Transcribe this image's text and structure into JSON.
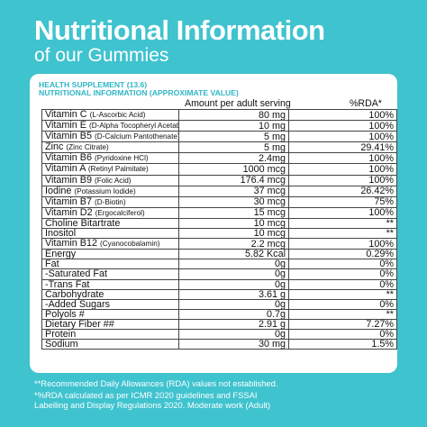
{
  "header": {
    "title": "Nutritional Information",
    "subtitle": "of our Gummies"
  },
  "card": {
    "heading1": "HEALTH SUPPLEMENT (13.6)",
    "heading2": "NUTRITIONAL INFORMATION (APPROXIMATE VALUE)",
    "col_amount": "Amount per adult serving",
    "col_rda": "%RDA*"
  },
  "rows": [
    {
      "name": "Vitamin C",
      "sub": "(L-Ascorbic Acid)",
      "amount": "80 mg",
      "rda": "100%"
    },
    {
      "name": "Vitamin E",
      "sub": "(D-Alpha Tocopheryl Acetate)",
      "amount": "10 mg",
      "rda": "100%"
    },
    {
      "name": "Vitamin B5",
      "sub": "(D-Calcium Pantothenate)",
      "amount": "5 mg",
      "rda": "100%"
    },
    {
      "name": "Zinc",
      "sub": "(Zinc Citrate)",
      "amount": "5 mg",
      "rda": "29.41%"
    },
    {
      "name": "Vitamin B6",
      "sub": "(Pyridoxine HCl)",
      "amount": "2.4mg",
      "rda": "100%"
    },
    {
      "name": "Vitamin A",
      "sub": "(Retinyl Palmitate)",
      "amount": "1000 mcg",
      "rda": "100%"
    },
    {
      "name": "Vitamin B9",
      "sub": "(Folic Acid)",
      "amount": "176.4 mcg",
      "rda": "100%"
    },
    {
      "name": "Iodine",
      "sub": "(Potassium Iodide)",
      "amount": "37 mcg",
      "rda": "26.42%"
    },
    {
      "name": "Vitamin B7",
      "sub": "(D-Biotin)",
      "amount": "30 mcg",
      "rda": "75%"
    },
    {
      "name": "Vitamin D2",
      "sub": "(Ergocalciferol)",
      "amount": "15 mcg",
      "rda": "100%"
    },
    {
      "name": "Choline Bitartrate",
      "sub": "",
      "amount": "10 mcg",
      "rda": "**"
    },
    {
      "name": "Inositol",
      "sub": "",
      "amount": "10 mcg",
      "rda": "**"
    },
    {
      "name": "Vitamin B12",
      "sub": "(Cyanocobalamin)",
      "amount": "2.2 mcg",
      "rda": "100%"
    },
    {
      "name": "Energy",
      "sub": "",
      "amount": "5.82 Kcal",
      "rda": "0.29%"
    },
    {
      "name": "Fat",
      "sub": "",
      "amount": "0g",
      "rda": "0%"
    },
    {
      "name": "-Saturated Fat",
      "sub": "",
      "amount": "0g",
      "rda": "0%"
    },
    {
      "name": "-Trans Fat",
      "sub": "",
      "amount": "0g",
      "rda": "0%"
    },
    {
      "name": "Carbohydrate",
      "sub": "",
      "amount": "3.61 g",
      "rda": "**"
    },
    {
      "name": "-Added Sugars",
      "sub": "",
      "amount": "0g",
      "rda": "0%"
    },
    {
      "name": "Polyols #",
      "sub": "",
      "amount": "0.7g",
      "rda": "**"
    },
    {
      "name": "Dietary Fiber ##",
      "sub": "",
      "amount": "2.91 g",
      "rda": "7.27%"
    },
    {
      "name": "Protein",
      "sub": "",
      "amount": "0g",
      "rda": "0%"
    },
    {
      "name": "Sodium",
      "sub": "",
      "amount": "30 mg",
      "rda": "1.5%"
    }
  ],
  "footnotes": {
    "note1": "**Recommended Daily Allowances (RDA) values not established.",
    "note2": "*%RDA calculated as per ICMR 2020 guidelines and FSSAI",
    "note3": "Labelling and Display Regulations 2020. Moderate work (Adult)"
  },
  "colors": {
    "background": "#3fc3cf",
    "heading_accent": "#2fb6c6",
    "card": "#ffffff"
  }
}
